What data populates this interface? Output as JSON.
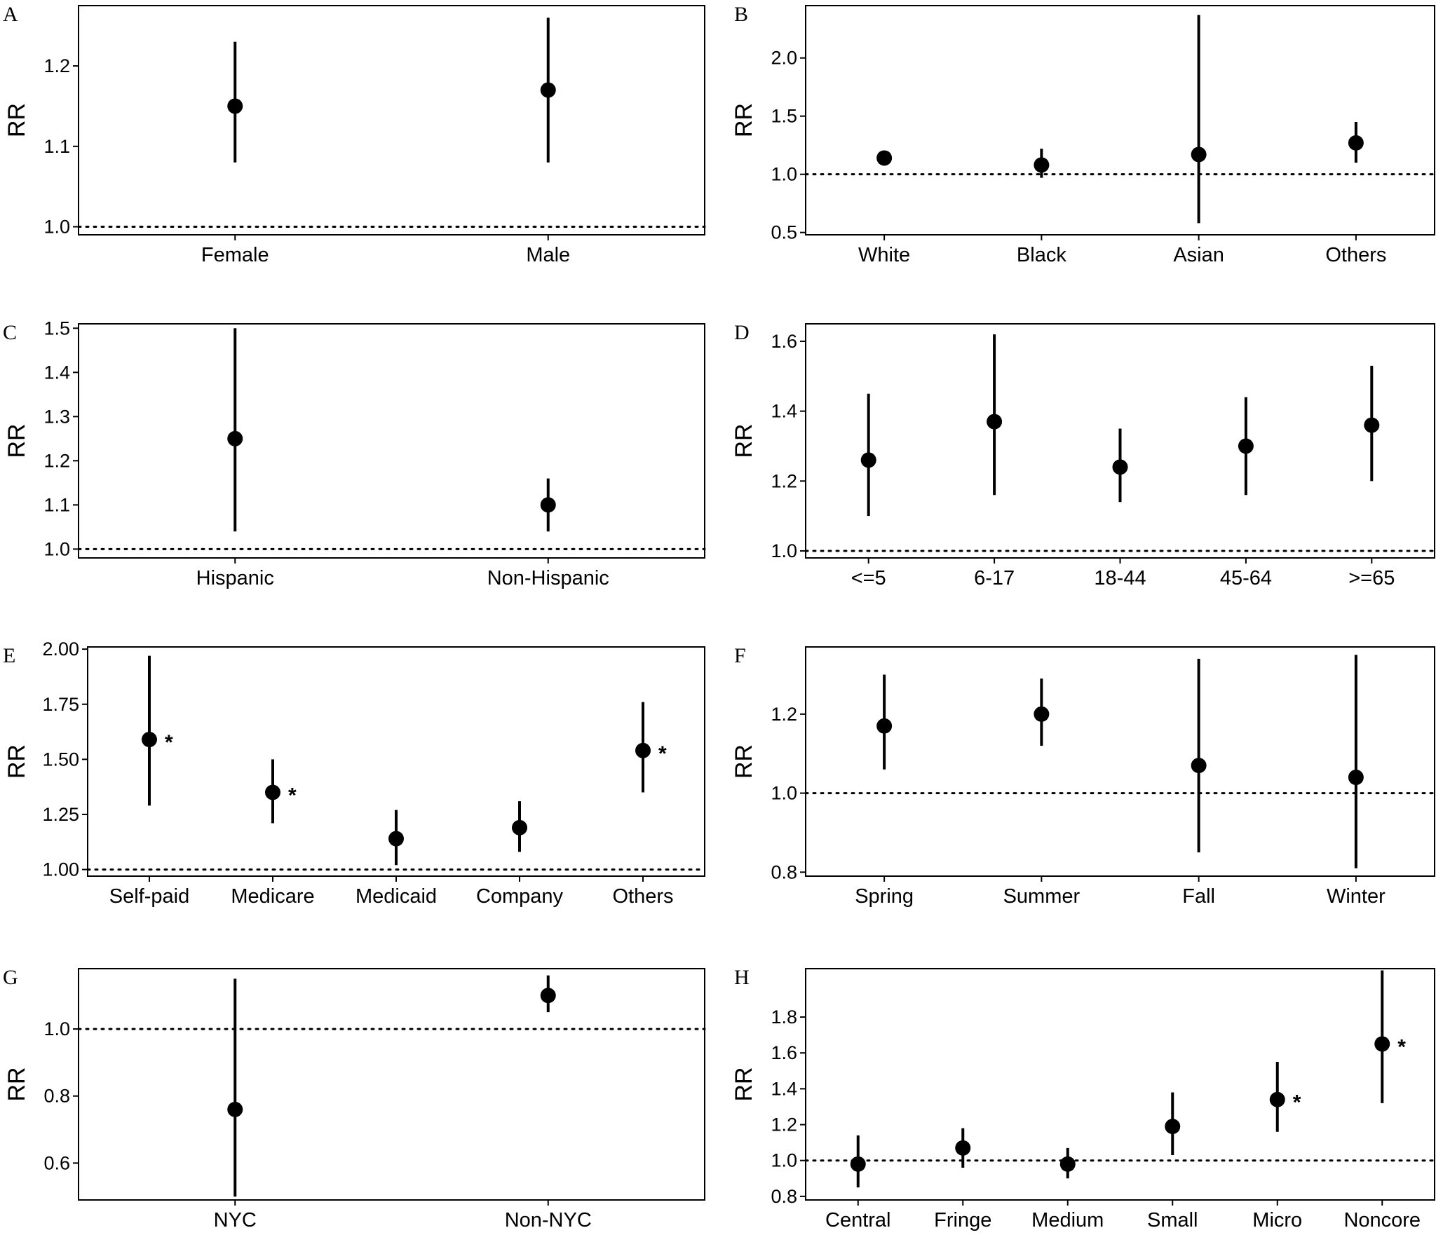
{
  "figure": {
    "chart_data": [
      {
        "panel": "A",
        "type": "scatter",
        "ylabel": "RR",
        "xlabel": "",
        "categories": [
          "Female",
          "Male"
        ],
        "points": [
          {
            "category": "Female",
            "rr": 1.15,
            "lower": 1.08,
            "upper": 1.23,
            "star": false
          },
          {
            "category": "Male",
            "rr": 1.17,
            "lower": 1.08,
            "upper": 1.26,
            "star": false
          }
        ],
        "ylim": [
          0.99,
          1.275
        ],
        "yticks": [
          1.0,
          1.1,
          1.2
        ],
        "ytick_labels": [
          "1.0",
          "1.1",
          "1.2"
        ],
        "reference_line": 1.0
      },
      {
        "panel": "B",
        "type": "scatter",
        "ylabel": "RR",
        "xlabel": "",
        "categories": [
          "White",
          "Black",
          "Asian",
          "Others"
        ],
        "points": [
          {
            "category": "White",
            "rr": 1.14,
            "lower": 1.1,
            "upper": 1.2,
            "star": false
          },
          {
            "category": "Black",
            "rr": 1.08,
            "lower": 0.97,
            "upper": 1.22,
            "star": false
          },
          {
            "category": "Asian",
            "rr": 1.17,
            "lower": 0.58,
            "upper": 2.37,
            "star": false
          },
          {
            "category": "Others",
            "rr": 1.27,
            "lower": 1.1,
            "upper": 1.45,
            "star": false
          }
        ],
        "ylim": [
          0.48,
          2.45
        ],
        "yticks": [
          0.5,
          1.0,
          1.5,
          2.0
        ],
        "ytick_labels": [
          "0.5",
          "1.0",
          "1.5",
          "2.0"
        ],
        "reference_line": 1.0
      },
      {
        "panel": "C",
        "type": "scatter",
        "ylabel": "RR",
        "xlabel": "",
        "categories": [
          "Hispanic",
          "Non-Hispanic"
        ],
        "points": [
          {
            "category": "Hispanic",
            "rr": 1.25,
            "lower": 1.04,
            "upper": 1.5,
            "star": false
          },
          {
            "category": "Non-Hispanic",
            "rr": 1.1,
            "lower": 1.04,
            "upper": 1.16,
            "star": false
          }
        ],
        "ylim": [
          0.98,
          1.51
        ],
        "yticks": [
          1.0,
          1.1,
          1.2,
          1.3,
          1.4,
          1.5
        ],
        "ytick_labels": [
          "1.0",
          "1.1",
          "1.2",
          "1.3",
          "1.4",
          "1.5"
        ],
        "reference_line": 1.0
      },
      {
        "panel": "D",
        "type": "scatter",
        "ylabel": "RR",
        "xlabel": "",
        "categories": [
          "<=5",
          "6-17",
          "18-44",
          "45-64",
          ">=65"
        ],
        "points": [
          {
            "category": "<=5",
            "rr": 1.26,
            "lower": 1.1,
            "upper": 1.45,
            "star": false
          },
          {
            "category": "6-17",
            "rr": 1.37,
            "lower": 1.16,
            "upper": 1.62,
            "star": false
          },
          {
            "category": "18-44",
            "rr": 1.24,
            "lower": 1.14,
            "upper": 1.35,
            "star": false
          },
          {
            "category": "45-64",
            "rr": 1.3,
            "lower": 1.16,
            "upper": 1.44,
            "star": false
          },
          {
            "category": ">=65",
            "rr": 1.36,
            "lower": 1.2,
            "upper": 1.53,
            "star": false
          }
        ],
        "ylim": [
          0.98,
          1.65
        ],
        "yticks": [
          1.0,
          1.2,
          1.4,
          1.6
        ],
        "ytick_labels": [
          "1.0",
          "1.2",
          "1.4",
          "1.6"
        ],
        "reference_line": 1.0
      },
      {
        "panel": "E",
        "type": "scatter",
        "ylabel": "RR",
        "xlabel": "",
        "categories": [
          "Self-paid",
          "Medicare",
          "Medicaid",
          "Company",
          "Others"
        ],
        "points": [
          {
            "category": "Self-paid",
            "rr": 1.59,
            "lower": 1.29,
            "upper": 1.97,
            "star": true
          },
          {
            "category": "Medicare",
            "rr": 1.35,
            "lower": 1.21,
            "upper": 1.5,
            "star": true
          },
          {
            "category": "Medicaid",
            "rr": 1.14,
            "lower": 1.02,
            "upper": 1.27,
            "star": false
          },
          {
            "category": "Company",
            "rr": 1.19,
            "lower": 1.08,
            "upper": 1.31,
            "star": false
          },
          {
            "category": "Others",
            "rr": 1.54,
            "lower": 1.35,
            "upper": 1.76,
            "star": true
          }
        ],
        "ylim": [
          0.97,
          2.01
        ],
        "yticks": [
          1.0,
          1.25,
          1.5,
          1.75,
          2.0
        ],
        "ytick_labels": [
          "1.00",
          "1.25",
          "1.50",
          "1.75",
          "2.00"
        ],
        "reference_line": 1.0,
        "star_symbol": "*"
      },
      {
        "panel": "F",
        "type": "scatter",
        "ylabel": "RR",
        "xlabel": "",
        "categories": [
          "Spring",
          "Summer",
          "Fall",
          "Winter"
        ],
        "points": [
          {
            "category": "Spring",
            "rr": 1.17,
            "lower": 1.06,
            "upper": 1.3,
            "star": false
          },
          {
            "category": "Summer",
            "rr": 1.2,
            "lower": 1.12,
            "upper": 1.29,
            "star": false
          },
          {
            "category": "Fall",
            "rr": 1.07,
            "lower": 0.85,
            "upper": 1.34,
            "star": false
          },
          {
            "category": "Winter",
            "rr": 1.04,
            "lower": 0.81,
            "upper": 1.35,
            "star": false
          }
        ],
        "ylim": [
          0.79,
          1.37
        ],
        "yticks": [
          0.8,
          1.0,
          1.2
        ],
        "ytick_labels": [
          "0.8",
          "1.0",
          "1.2"
        ],
        "reference_line": 1.0
      },
      {
        "panel": "G",
        "type": "scatter",
        "ylabel": "RR",
        "xlabel": "",
        "categories": [
          "NYC",
          "Non-NYC"
        ],
        "points": [
          {
            "category": "NYC",
            "rr": 0.76,
            "lower": 0.5,
            "upper": 1.15,
            "star": false
          },
          {
            "category": "Non-NYC",
            "rr": 1.1,
            "lower": 1.05,
            "upper": 1.16,
            "star": false
          }
        ],
        "ylim": [
          0.49,
          1.18
        ],
        "yticks": [
          0.6,
          0.8,
          1.0
        ],
        "ytick_labels": [
          "0.6",
          "0.8",
          "1.0"
        ],
        "reference_line": 1.0
      },
      {
        "panel": "H",
        "type": "scatter",
        "ylabel": "RR",
        "xlabel": "",
        "categories": [
          "Central",
          "Fringe",
          "Medium",
          "Small",
          "Micro",
          "Noncore"
        ],
        "points": [
          {
            "category": "Central",
            "rr": 0.98,
            "lower": 0.85,
            "upper": 1.14,
            "star": false
          },
          {
            "category": "Fringe",
            "rr": 1.07,
            "lower": 0.96,
            "upper": 1.18,
            "star": false
          },
          {
            "category": "Medium",
            "rr": 0.98,
            "lower": 0.9,
            "upper": 1.07,
            "star": false
          },
          {
            "category": "Small",
            "rr": 1.19,
            "lower": 1.03,
            "upper": 1.38,
            "star": false
          },
          {
            "category": "Micro",
            "rr": 1.34,
            "lower": 1.16,
            "upper": 1.55,
            "star": true
          },
          {
            "category": "Noncore",
            "rr": 1.65,
            "lower": 1.32,
            "upper": 2.06,
            "star": true
          }
        ],
        "ylim": [
          0.78,
          2.07
        ],
        "yticks": [
          0.8,
          1.0,
          1.2,
          1.4,
          1.6,
          1.8
        ],
        "ytick_labels": [
          "0.8",
          "1.0",
          "1.2",
          "1.4",
          "1.6",
          "1.8"
        ],
        "reference_line": 1.0,
        "star_symbol": "*"
      }
    ]
  }
}
